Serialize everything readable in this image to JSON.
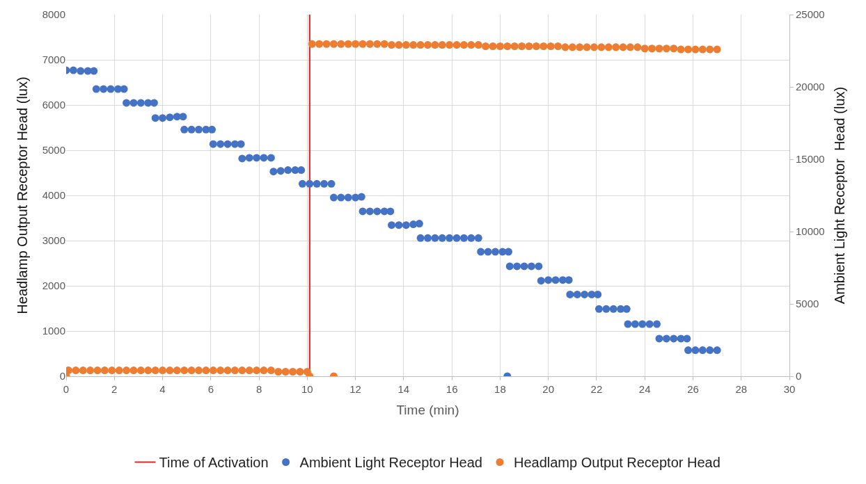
{
  "chart_data": {
    "type": "scatter",
    "xlabel": "Time (min)",
    "ylabel": "Headlamp Output Receptor Head (lux)",
    "y2label": "Ambient Light Receptor  Head (lux)",
    "xlim": [
      0,
      30
    ],
    "xticks": [
      0,
      2,
      4,
      6,
      8,
      10,
      12,
      14,
      16,
      18,
      20,
      22,
      24,
      26,
      28,
      30
    ],
    "ylim": [
      0,
      8000
    ],
    "yticks": [
      0,
      1000,
      2000,
      3000,
      4000,
      5000,
      6000,
      7000,
      8000
    ],
    "y2lim": [
      0,
      25000
    ],
    "y2ticks": [
      0,
      5000,
      10000,
      15000,
      20000,
      25000
    ],
    "grid": true,
    "legend": "bottom",
    "marker": "circle",
    "ref_lines": [
      {
        "axis": "x",
        "value": 10.1,
        "label": "Time of Activation",
        "color": "#e8262a"
      }
    ],
    "series": [
      {
        "name": "Ambient Light Receptor Head",
        "color": "#4472c4",
        "axis": "y2",
        "x": [
          0,
          0.3,
          0.6,
          0.9,
          1.15,
          1.25,
          1.55,
          1.85,
          2.15,
          2.4,
          2.5,
          2.8,
          3.1,
          3.4,
          3.65,
          3.7,
          4.0,
          4.3,
          4.6,
          4.85,
          4.9,
          5.2,
          5.5,
          5.8,
          6.05,
          6.1,
          6.4,
          6.7,
          7.0,
          7.25,
          7.3,
          7.6,
          7.9,
          8.2,
          8.5,
          8.6,
          8.9,
          9.2,
          9.5,
          9.75,
          9.8,
          10.1,
          10.4,
          10.7,
          11.0,
          11.1,
          11.4,
          11.7,
          12.0,
          12.25,
          12.3,
          12.6,
          12.9,
          13.2,
          13.45,
          13.5,
          13.8,
          14.1,
          14.4,
          14.65,
          14.7,
          15.0,
          15.3,
          15.6,
          15.9,
          16.2,
          16.5,
          16.8,
          17.1,
          17.2,
          17.5,
          17.8,
          18.1,
          18.35,
          18.4,
          18.7,
          19.0,
          19.3,
          19.6,
          19.7,
          20.0,
          20.3,
          20.6,
          20.85,
          20.9,
          21.2,
          21.5,
          21.8,
          22.05,
          22.1,
          22.4,
          22.7,
          23.0,
          23.25,
          23.3,
          23.6,
          23.9,
          24.2,
          24.5,
          24.6,
          24.9,
          25.2,
          25.5,
          25.75,
          25.8,
          26.1,
          26.4,
          26.7,
          27.0,
          18.3
        ],
        "values": [
          21150,
          21150,
          21100,
          21100,
          21100,
          19850,
          19850,
          19850,
          19850,
          19850,
          18900,
          18900,
          18900,
          18900,
          18900,
          17850,
          17850,
          17900,
          17950,
          17950,
          17050,
          17050,
          17050,
          17050,
          17050,
          16050,
          16050,
          16050,
          16050,
          16050,
          15050,
          15100,
          15100,
          15100,
          15100,
          14150,
          14200,
          14250,
          14250,
          14250,
          13300,
          13300,
          13300,
          13300,
          13300,
          12350,
          12350,
          12350,
          12350,
          12400,
          11400,
          11400,
          11400,
          11400,
          11400,
          10450,
          10450,
          10450,
          10500,
          10550,
          9550,
          9550,
          9550,
          9550,
          9550,
          9550,
          9550,
          9550,
          9550,
          8600,
          8600,
          8600,
          8600,
          8600,
          7600,
          7600,
          7600,
          7600,
          7600,
          6600,
          6650,
          6650,
          6650,
          6650,
          5650,
          5650,
          5650,
          5650,
          5650,
          4650,
          4650,
          4650,
          4650,
          4650,
          3600,
          3600,
          3600,
          3600,
          3600,
          2600,
          2600,
          2600,
          2600,
          2600,
          1800,
          1800,
          1800,
          1800,
          1800,
          0
        ]
      },
      {
        "name": "Headlamp Output Receptor Head",
        "color": "#ed7d31",
        "x": [
          0,
          0.1,
          0.4,
          0.7,
          1.0,
          1.3,
          1.6,
          1.9,
          2.2,
          2.5,
          2.8,
          3.1,
          3.4,
          3.7,
          4.0,
          4.3,
          4.6,
          4.9,
          5.2,
          5.5,
          5.8,
          6.1,
          6.4,
          6.7,
          7.0,
          7.3,
          7.6,
          7.9,
          8.2,
          8.5,
          8.8,
          9.1,
          9.4,
          9.7,
          10.0,
          10.1,
          11.1,
          10.2,
          10.5,
          10.8,
          11.1,
          11.4,
          11.7,
          12.0,
          12.3,
          12.6,
          12.9,
          13.2,
          13.5,
          13.8,
          14.1,
          14.4,
          14.7,
          15.0,
          15.3,
          15.6,
          15.9,
          16.2,
          16.5,
          16.8,
          17.1,
          17.4,
          17.7,
          18.0,
          18.3,
          18.6,
          18.9,
          19.2,
          19.5,
          19.8,
          20.1,
          20.4,
          20.7,
          21.0,
          21.3,
          21.6,
          21.9,
          22.2,
          22.5,
          22.8,
          23.1,
          23.4,
          23.7,
          24.0,
          24.3,
          24.6,
          24.9,
          25.2,
          25.5,
          25.8,
          26.1,
          26.4,
          26.7,
          27.0
        ],
        "values": [
          0,
          130,
          130,
          130,
          130,
          130,
          130,
          130,
          130,
          130,
          130,
          130,
          130,
          130,
          130,
          130,
          130,
          130,
          130,
          130,
          130,
          130,
          130,
          130,
          130,
          130,
          130,
          130,
          130,
          130,
          100,
          100,
          100,
          100,
          100,
          0,
          0,
          7350,
          7350,
          7350,
          7350,
          7350,
          7350,
          7350,
          7350,
          7350,
          7350,
          7350,
          7330,
          7330,
          7330,
          7330,
          7330,
          7330,
          7330,
          7330,
          7330,
          7330,
          7330,
          7330,
          7330,
          7300,
          7300,
          7300,
          7300,
          7300,
          7300,
          7300,
          7300,
          7300,
          7300,
          7300,
          7280,
          7280,
          7280,
          7280,
          7280,
          7280,
          7280,
          7280,
          7280,
          7280,
          7280,
          7250,
          7250,
          7250,
          7250,
          7250,
          7230,
          7230,
          7230,
          7230,
          7230,
          7230
        ]
      }
    ]
  }
}
